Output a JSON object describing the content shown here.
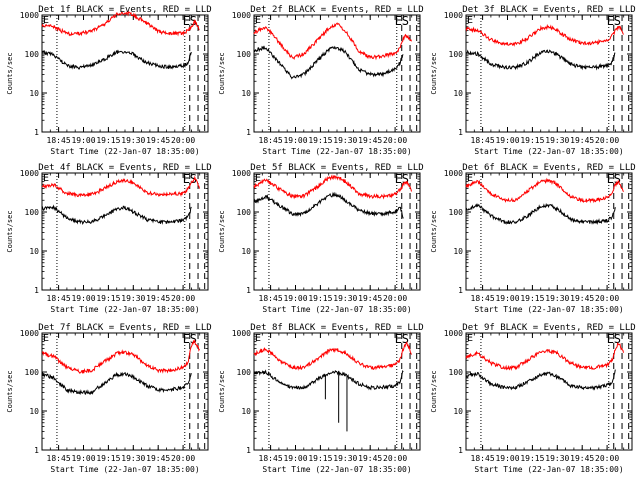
{
  "chart_data": [
    {
      "type": "line",
      "title": "Det 1f BLACK = Events, RED = LLD",
      "xlabel": "Start Time (22-Jan-07 18:35:00)",
      "ylabel": "Counts/sec",
      "yscale": "log",
      "ylim": [
        1,
        1000
      ],
      "xlim": [
        "18:35",
        "20:15"
      ],
      "x_ticks": [
        "18:45",
        "19:00",
        "19:15",
        "19:30",
        "19:45",
        "20:00"
      ],
      "y_ticks": [
        "1",
        "10",
        "100",
        "1000"
      ],
      "markers": [
        "E",
        "S"
      ],
      "series": [
        {
          "color": "#ff0000",
          "x": [
            "18:35",
            "18:42",
            "18:50",
            "18:58",
            "19:05",
            "19:12",
            "19:20",
            "19:25",
            "19:30",
            "19:38",
            "19:45",
            "19:52",
            "20:00",
            "20:03",
            "20:05",
            "20:07",
            "20:08",
            "20:10"
          ],
          "values": [
            550,
            500,
            330,
            340,
            380,
            560,
            1050,
            1150,
            1000,
            620,
            380,
            340,
            340,
            400,
            500,
            700,
            600,
            400
          ]
        },
        {
          "color": "#000000",
          "x": [
            "18:35",
            "18:42",
            "18:50",
            "18:58",
            "19:05",
            "19:12",
            "19:20",
            "19:25",
            "19:30",
            "19:38",
            "19:45",
            "19:52",
            "20:00",
            "20:03",
            "20:05"
          ],
          "values": [
            110,
            95,
            50,
            45,
            50,
            70,
            110,
            115,
            100,
            60,
            50,
            45,
            50,
            60,
            120
          ]
        }
      ]
    },
    {
      "type": "line",
      "title": "Det 2f BLACK = Events, RED = LLD",
      "xlabel": "Start Time (22-Jan-07 18:35:00)",
      "ylabel": "Counts/sec",
      "yscale": "log",
      "ylim": [
        1,
        1000
      ],
      "xlim": [
        "18:35",
        "20:15"
      ],
      "x_ticks": [
        "18:45",
        "19:00",
        "19:15",
        "19:30",
        "19:45",
        "20:00"
      ],
      "y_ticks": [
        "1",
        "10",
        "100",
        "1000"
      ],
      "markers": [
        "E",
        "S"
      ],
      "series": [
        {
          "color": "#ff0000",
          "x": [
            "18:35",
            "18:42",
            "18:50",
            "18:58",
            "19:05",
            "19:12",
            "19:20",
            "19:25",
            "19:30",
            "19:38",
            "19:45",
            "19:52",
            "20:00",
            "20:03",
            "20:05",
            "20:07",
            "20:08",
            "20:10"
          ],
          "values": [
            350,
            500,
            200,
            80,
            100,
            200,
            450,
            600,
            400,
            120,
            80,
            90,
            100,
            150,
            250,
            300,
            250,
            200
          ]
        },
        {
          "color": "#000000",
          "x": [
            "18:35",
            "18:42",
            "18:50",
            "18:58",
            "19:05",
            "19:12",
            "19:20",
            "19:25",
            "19:30",
            "19:38",
            "19:45",
            "19:52",
            "20:00",
            "20:03",
            "20:05"
          ],
          "values": [
            120,
            150,
            60,
            25,
            30,
            60,
            130,
            150,
            110,
            40,
            30,
            30,
            40,
            60,
            100
          ]
        }
      ]
    },
    {
      "type": "line",
      "title": "Det 3f BLACK = Events, RED = LLD",
      "xlabel": "Start Time (22-Jan-07 18:35:00)",
      "ylabel": "Counts/sec",
      "yscale": "log",
      "ylim": [
        1,
        1000
      ],
      "xlim": [
        "18:35",
        "20:15"
      ],
      "x_ticks": [
        "18:45",
        "19:00",
        "19:15",
        "19:30",
        "19:45",
        "20:00"
      ],
      "y_ticks": [
        "1",
        "10",
        "100",
        "1000"
      ],
      "markers": [
        "E",
        "S"
      ],
      "series": [
        {
          "color": "#ff0000",
          "x": [
            "18:35",
            "18:42",
            "18:50",
            "18:58",
            "19:05",
            "19:12",
            "19:20",
            "19:25",
            "19:30",
            "19:38",
            "19:45",
            "19:52",
            "20:00",
            "20:03",
            "20:05",
            "20:07",
            "20:08",
            "20:10"
          ],
          "values": [
            450,
            400,
            230,
            180,
            180,
            250,
            450,
            500,
            400,
            230,
            190,
            190,
            220,
            300,
            400,
            500,
            450,
            300
          ]
        },
        {
          "color": "#000000",
          "x": [
            "18:35",
            "18:42",
            "18:50",
            "18:58",
            "19:05",
            "19:12",
            "19:20",
            "19:25",
            "19:30",
            "19:38",
            "19:45",
            "19:52",
            "20:00",
            "20:03",
            "20:05"
          ],
          "values": [
            110,
            100,
            55,
            45,
            45,
            60,
            110,
            120,
            95,
            55,
            45,
            45,
            50,
            60,
            120
          ]
        }
      ]
    },
    {
      "type": "line",
      "title": "Det 4f BLACK = Events, RED = LLD",
      "xlabel": "Start Time (22-Jan-07 18:35:00)",
      "ylabel": "Counts/sec",
      "yscale": "log",
      "ylim": [
        1,
        1000
      ],
      "xlim": [
        "18:35",
        "20:15"
      ],
      "x_ticks": [
        "18:45",
        "19:00",
        "19:15",
        "19:30",
        "19:45",
        "20:00"
      ],
      "y_ticks": [
        "1",
        "10",
        "100",
        "1000"
      ],
      "markers": [
        "E",
        "S"
      ],
      "series": [
        {
          "color": "#ff0000",
          "x": [
            "18:35",
            "18:42",
            "18:50",
            "18:58",
            "19:05",
            "19:12",
            "19:20",
            "19:25",
            "19:30",
            "19:38",
            "19:45",
            "19:52",
            "20:00",
            "20:03",
            "20:05",
            "20:07",
            "20:08",
            "20:10"
          ],
          "values": [
            450,
            500,
            300,
            270,
            280,
            380,
            600,
            650,
            550,
            320,
            280,
            280,
            300,
            400,
            600,
            700,
            600,
            400
          ]
        },
        {
          "color": "#000000",
          "x": [
            "18:35",
            "18:42",
            "18:50",
            "18:58",
            "19:05",
            "19:12",
            "19:20",
            "19:25",
            "19:30",
            "19:38",
            "19:45",
            "19:52",
            "20:00",
            "20:03",
            "20:05"
          ],
          "values": [
            120,
            130,
            70,
            55,
            55,
            75,
            120,
            130,
            100,
            65,
            55,
            55,
            60,
            75,
            130
          ]
        }
      ]
    },
    {
      "type": "line",
      "title": "Det 5f BLACK = Events, RED = LLD",
      "xlabel": "Start Time (22-Jan-07 18:35:00)",
      "ylabel": "Counts/sec",
      "yscale": "log",
      "ylim": [
        1,
        1000
      ],
      "xlim": [
        "18:35",
        "20:15"
      ],
      "x_ticks": [
        "18:45",
        "19:00",
        "19:15",
        "19:30",
        "19:45",
        "20:00"
      ],
      "y_ticks": [
        "1",
        "10",
        "100",
        "1000"
      ],
      "markers": [
        "E",
        "S"
      ],
      "series": [
        {
          "color": "#ff0000",
          "x": [
            "18:35",
            "18:42",
            "18:50",
            "18:58",
            "19:05",
            "19:12",
            "19:20",
            "19:25",
            "19:30",
            "19:38",
            "19:45",
            "19:52",
            "20:00",
            "20:03",
            "20:05",
            "20:07",
            "20:08",
            "20:10"
          ],
          "values": [
            450,
            650,
            400,
            250,
            260,
            400,
            750,
            800,
            600,
            300,
            250,
            250,
            280,
            380,
            500,
            600,
            500,
            350
          ]
        },
        {
          "color": "#000000",
          "x": [
            "18:35",
            "18:42",
            "18:50",
            "18:58",
            "19:05",
            "19:12",
            "19:20",
            "19:25",
            "19:30",
            "19:38",
            "19:45",
            "19:52",
            "20:00",
            "20:03",
            "20:05"
          ],
          "values": [
            180,
            250,
            150,
            90,
            90,
            150,
            260,
            280,
            200,
            110,
            90,
            90,
            100,
            130,
            70
          ]
        }
      ]
    },
    {
      "type": "line",
      "title": "Det 6f BLACK = Events, RED = LLD",
      "xlabel": "Start Time (22-Jan-07 18:35:00)",
      "ylabel": "Counts/sec",
      "yscale": "log",
      "ylim": [
        1,
        1000
      ],
      "xlim": [
        "18:35",
        "20:15"
      ],
      "x_ticks": [
        "18:45",
        "19:00",
        "19:15",
        "19:30",
        "19:45",
        "20:00"
      ],
      "y_ticks": [
        "1",
        "10",
        "100",
        "1000"
      ],
      "markers": [
        "E",
        "S"
      ],
      "series": [
        {
          "color": "#ff0000",
          "x": [
            "18:35",
            "18:42",
            "18:50",
            "18:58",
            "19:05",
            "19:12",
            "19:20",
            "19:25",
            "19:30",
            "19:38",
            "19:45",
            "19:52",
            "20:00",
            "20:03",
            "20:05",
            "20:07",
            "20:08",
            "20:10"
          ],
          "values": [
            450,
            600,
            300,
            200,
            200,
            350,
            600,
            650,
            500,
            250,
            200,
            200,
            230,
            320,
            500,
            600,
            500,
            350
          ]
        },
        {
          "color": "#000000",
          "x": [
            "18:35",
            "18:42",
            "18:50",
            "18:58",
            "19:05",
            "19:12",
            "19:20",
            "19:25",
            "19:30",
            "19:38",
            "19:45",
            "19:52",
            "20:00",
            "20:03",
            "20:05"
          ],
          "values": [
            110,
            150,
            80,
            55,
            55,
            80,
            140,
            150,
            120,
            65,
            55,
            55,
            60,
            75,
            130
          ]
        }
      ]
    },
    {
      "type": "line",
      "title": "Det 7f BLACK = Events, RED = LLD",
      "xlabel": "Start Time (22-Jan-07 18:35:00)",
      "ylabel": "Counts/sec",
      "yscale": "log",
      "ylim": [
        1,
        1000
      ],
      "xlim": [
        "18:35",
        "20:15"
      ],
      "x_ticks": [
        "18:45",
        "19:00",
        "19:15",
        "19:30",
        "19:45",
        "20:00"
      ],
      "y_ticks": [
        "1",
        "10",
        "100",
        "1000"
      ],
      "markers": [
        "E",
        "S"
      ],
      "series": [
        {
          "color": "#ff0000",
          "x": [
            "18:35",
            "18:42",
            "18:50",
            "18:58",
            "19:05",
            "19:12",
            "19:20",
            "19:25",
            "19:30",
            "19:38",
            "19:45",
            "19:52",
            "20:00",
            "20:03",
            "20:05",
            "20:07",
            "20:08",
            "20:10"
          ],
          "values": [
            300,
            250,
            130,
            100,
            110,
            180,
            300,
            320,
            280,
            150,
            110,
            110,
            130,
            180,
            500,
            600,
            500,
            350
          ]
        },
        {
          "color": "#000000",
          "x": [
            "18:35",
            "18:42",
            "18:50",
            "18:58",
            "19:05",
            "19:12",
            "19:20",
            "19:25",
            "19:30",
            "19:38",
            "19:45",
            "19:52",
            "20:00",
            "20:03",
            "20:05"
          ],
          "values": [
            90,
            70,
            35,
            30,
            30,
            50,
            85,
            90,
            75,
            45,
            35,
            35,
            40,
            50,
            100
          ]
        }
      ]
    },
    {
      "type": "line",
      "title": "Det 8f BLACK = Events, RED = LLD",
      "xlabel": "Start Time (22-Jan-07 18:35:00)",
      "ylabel": "Counts/sec",
      "yscale": "log",
      "ylim": [
        1,
        1000
      ],
      "xlim": [
        "18:35",
        "20:15"
      ],
      "x_ticks": [
        "18:45",
        "19:00",
        "19:15",
        "19:30",
        "19:45",
        "20:00"
      ],
      "y_ticks": [
        "1",
        "10",
        "100",
        "1000"
      ],
      "markers": [
        "E",
        "S"
      ],
      "series": [
        {
          "color": "#ff0000",
          "x": [
            "18:35",
            "18:42",
            "18:50",
            "18:58",
            "19:05",
            "19:12",
            "19:20",
            "19:25",
            "19:30",
            "19:38",
            "19:45",
            "19:52",
            "20:00",
            "20:03",
            "20:05",
            "20:07",
            "20:08",
            "20:10"
          ],
          "values": [
            280,
            400,
            200,
            130,
            130,
            200,
            350,
            380,
            300,
            170,
            130,
            130,
            150,
            200,
            400,
            550,
            450,
            300
          ]
        },
        {
          "color": "#000000",
          "x": [
            "18:35",
            "18:42",
            "18:50",
            "18:58",
            "19:05",
            "19:12",
            "19:20",
            "19:25",
            "19:30",
            "19:38",
            "19:45",
            "19:52",
            "20:00",
            "20:03",
            "20:05"
          ],
          "values": [
            90,
            100,
            55,
            40,
            40,
            60,
            95,
            100,
            85,
            50,
            40,
            40,
            45,
            55,
            110
          ]
        }
      ],
      "dropouts": [
        {
          "x": "19:18",
          "low": 20
        },
        {
          "x": "19:26",
          "low": 5
        },
        {
          "x": "19:31",
          "low": 3
        }
      ]
    },
    {
      "type": "line",
      "title": "Det 9f BLACK = Events, RED = LLD",
      "xlabel": "Start Time (22-Jan-07 18:35:00)",
      "ylabel": "Counts/sec",
      "yscale": "log",
      "ylim": [
        1,
        1000
      ],
      "xlim": [
        "18:35",
        "20:15"
      ],
      "x_ticks": [
        "18:45",
        "19:00",
        "19:15",
        "19:30",
        "19:45",
        "20:00"
      ],
      "y_ticks": [
        "1",
        "10",
        "100",
        "1000"
      ],
      "markers": [
        "E",
        "S"
      ],
      "series": [
        {
          "color": "#ff0000",
          "x": [
            "18:35",
            "18:42",
            "18:50",
            "18:58",
            "19:05",
            "19:12",
            "19:20",
            "19:25",
            "19:30",
            "19:38",
            "19:45",
            "19:52",
            "20:00",
            "20:03",
            "20:05",
            "20:07",
            "20:08",
            "20:10"
          ],
          "values": [
            250,
            300,
            170,
            130,
            130,
            200,
            330,
            350,
            300,
            170,
            130,
            130,
            150,
            200,
            400,
            550,
            450,
            300
          ]
        },
        {
          "color": "#000000",
          "x": [
            "18:35",
            "18:42",
            "18:50",
            "18:58",
            "19:05",
            "19:12",
            "19:20",
            "19:25",
            "19:30",
            "19:38",
            "19:45",
            "19:52",
            "20:00",
            "20:03",
            "20:05"
          ],
          "values": [
            80,
            90,
            50,
            40,
            40,
            55,
            85,
            90,
            75,
            45,
            40,
            40,
            45,
            55,
            110
          ]
        }
      ]
    }
  ],
  "vlines": {
    "dotted": [
      "18:44",
      "20:01"
    ],
    "dashed": [
      "20:04",
      "20:09",
      "20:13"
    ]
  }
}
